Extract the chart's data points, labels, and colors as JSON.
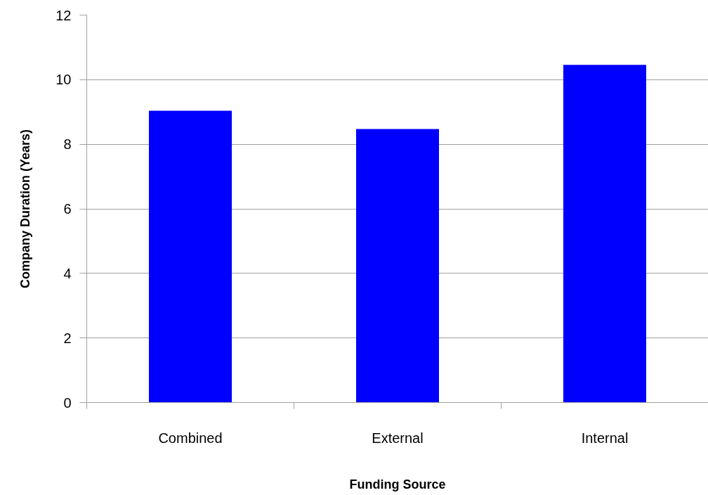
{
  "chart_data": {
    "type": "bar",
    "xlabel": "Funding Source",
    "ylabel": "Company Duration (Years)",
    "categories": [
      "Combined",
      "External",
      "Internal"
    ],
    "values": [
      9.04,
      8.47,
      10.46
    ],
    "color": "#0000ff",
    "ylim": [
      0,
      12
    ],
    "yticks": [
      0,
      2,
      4,
      6,
      8,
      10,
      12
    ],
    "grid": "y"
  }
}
